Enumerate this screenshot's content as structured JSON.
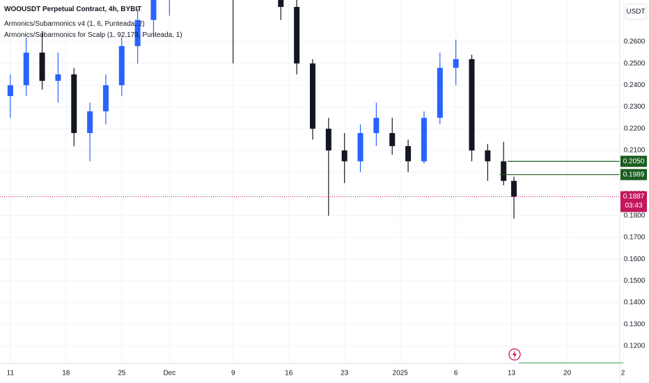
{
  "chart_data": {
    "type": "candlestick",
    "title": "WOOUSDT Perpetual Contract, 4h, BYBIT",
    "indicators": [
      "Armonics/Subarmonics v4 (1, 6, Punteada, 2)",
      "Armonics/Subarmonics for Scalp (1, 92,178, Punteada, 1)"
    ],
    "currency": "USDT",
    "x": [
      0,
      2,
      4,
      6,
      8,
      10,
      12,
      14,
      16,
      18,
      20,
      22,
      24,
      26,
      28,
      30,
      32,
      34,
      36,
      38,
      40,
      42,
      44,
      46,
      48,
      50,
      52,
      54,
      56,
      58,
      60,
      62,
      63.3
    ],
    "open": [
      0.235,
      0.24,
      0.255,
      0.242,
      0.245,
      0.218,
      0.228,
      0.24,
      0.258,
      0.27,
      0.28,
      0.29,
      0.298,
      0.3,
      0.292,
      0.288,
      0.295,
      0.285,
      0.276,
      0.25,
      0.22,
      0.21,
      0.205,
      0.218,
      0.218,
      0.212,
      0.205,
      0.225,
      0.248,
      0.252,
      0.21,
      0.205,
      0.196
    ],
    "high": [
      0.245,
      0.262,
      0.265,
      0.255,
      0.248,
      0.232,
      0.245,
      0.262,
      0.275,
      0.285,
      0.295,
      0.305,
      0.31,
      0.305,
      0.298,
      0.3,
      0.302,
      0.292,
      0.28,
      0.252,
      0.225,
      0.218,
      0.222,
      0.232,
      0.225,
      0.215,
      0.228,
      0.255,
      0.261,
      0.254,
      0.213,
      0.214,
      0.198
    ],
    "low": [
      0.225,
      0.235,
      0.238,
      0.232,
      0.212,
      0.205,
      0.222,
      0.235,
      0.25,
      0.262,
      0.272,
      0.282,
      0.288,
      0.285,
      0.25,
      0.28,
      0.282,
      0.27,
      0.245,
      0.215,
      0.18,
      0.195,
      0.2,
      0.212,
      0.208,
      0.2,
      0.204,
      0.222,
      0.24,
      0.205,
      0.196,
      0.194,
      0.1787
    ],
    "close": [
      0.24,
      0.255,
      0.242,
      0.245,
      0.218,
      0.228,
      0.24,
      0.258,
      0.27,
      0.28,
      0.29,
      0.298,
      0.3,
      0.292,
      0.288,
      0.295,
      0.285,
      0.276,
      0.25,
      0.22,
      0.21,
      0.205,
      0.218,
      0.225,
      0.212,
      0.205,
      0.225,
      0.248,
      0.252,
      0.21,
      0.205,
      0.196,
      0.1887
    ],
    "up_color": "#2962ff",
    "down_color": "#131722",
    "xlim": [
      -1.3,
      76.6
    ],
    "xticks": [
      {
        "value": 0,
        "label": "11"
      },
      {
        "value": 7,
        "label": "18"
      },
      {
        "value": 14,
        "label": "25"
      },
      {
        "value": 20,
        "label": "Dec"
      },
      {
        "value": 28,
        "label": "9"
      },
      {
        "value": 35,
        "label": "16"
      },
      {
        "value": 42,
        "label": "23"
      },
      {
        "value": 49,
        "label": "2025"
      },
      {
        "value": 56,
        "label": "6"
      },
      {
        "value": 63,
        "label": "13"
      },
      {
        "value": 70,
        "label": "20"
      },
      {
        "value": 77,
        "label": "2"
      }
    ],
    "ylim": [
      0.112,
      0.2792
    ],
    "yticks": [
      {
        "value": 0.12,
        "label": "0.1200"
      },
      {
        "value": 0.13,
        "label": "0.1300"
      },
      {
        "value": 0.14,
        "label": "0.1400"
      },
      {
        "value": 0.15,
        "label": "0.1500"
      },
      {
        "value": 0.16,
        "label": "0.1600"
      },
      {
        "value": 0.17,
        "label": "0.1700"
      },
      {
        "value": 0.18,
        "label": "0.1800"
      },
      {
        "value": 0.19,
        "label": "0.1900"
      },
      {
        "value": 0.2,
        "label": "0.2000"
      },
      {
        "value": 0.21,
        "label": "0.2100"
      },
      {
        "value": 0.22,
        "label": "0.2200"
      },
      {
        "value": 0.23,
        "label": "0.2300"
      },
      {
        "value": 0.24,
        "label": "0.2400"
      },
      {
        "value": 0.25,
        "label": "0.2500"
      },
      {
        "value": 0.26,
        "label": "0.2600"
      }
    ],
    "grid": true,
    "levels": [
      {
        "value": 0.205,
        "label": "0.2050",
        "color": "#1b5e20",
        "start": 62.5
      },
      {
        "value": 0.1989,
        "label": "0.1989",
        "color": "#1b5e20",
        "start": 61.5
      }
    ],
    "last_price": {
      "value": 0.1887,
      "label": "0.1887",
      "countdown": "03:43",
      "color": "#c2185b"
    }
  }
}
